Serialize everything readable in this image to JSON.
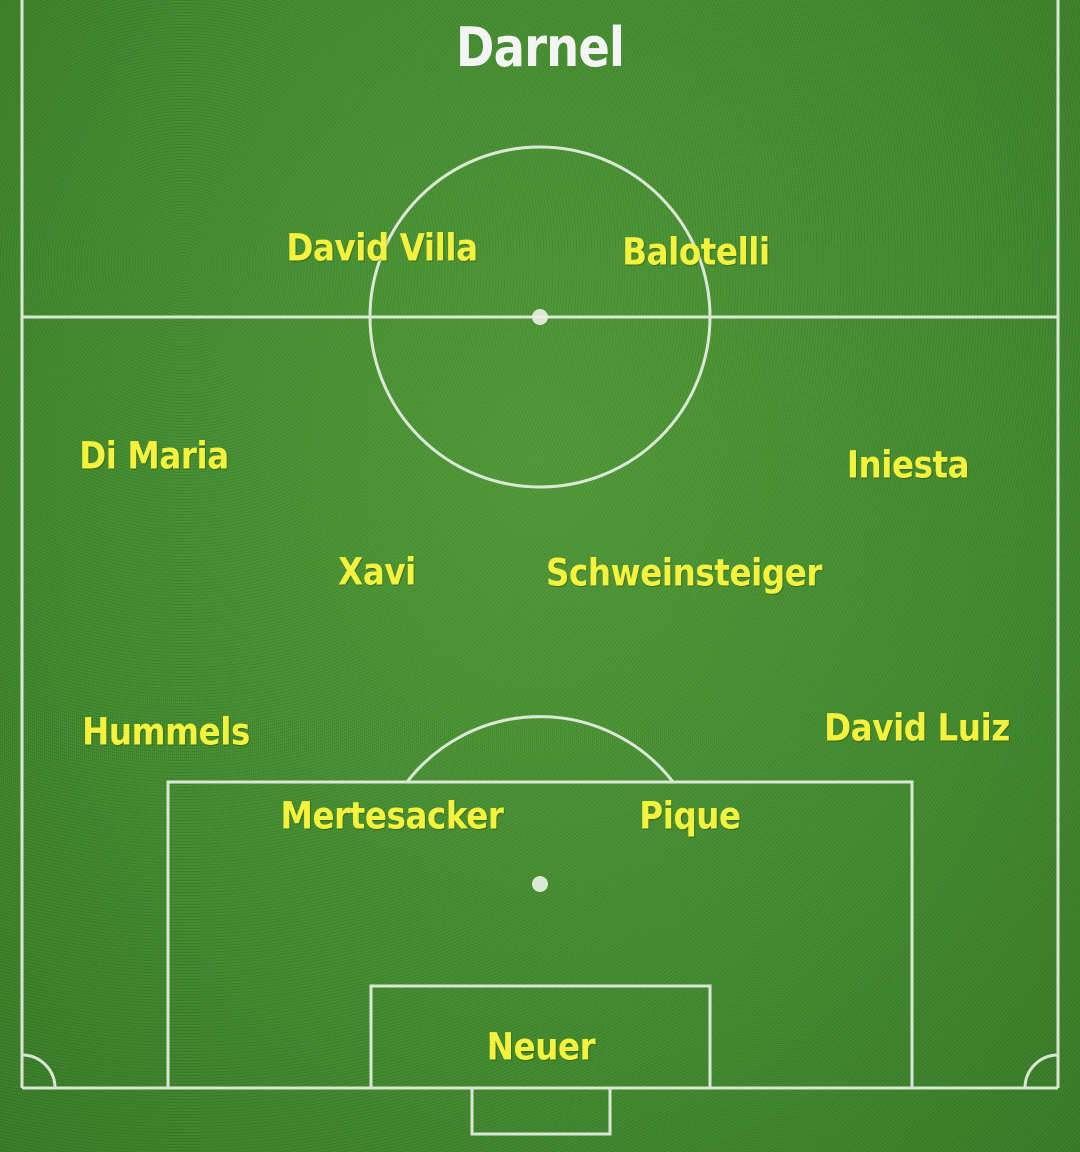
{
  "team_name": "Darnel",
  "colors": {
    "grass": "#3f8a2a",
    "lines": "#e8efe4",
    "player_text": "#f4f23c",
    "title_text": "#f4f4f4"
  },
  "players": {
    "forward_left": "David Villa",
    "forward_right": "Balotelli",
    "wing_left": "Di Maria",
    "wing_right": "Iniesta",
    "mid_left": "Xavi",
    "mid_right": "Schweinsteiger",
    "back_left": "Hummels",
    "back_right": "David Luiz",
    "center_back_left": "Mertesacker",
    "center_back_right": "Pique",
    "goalkeeper": "Neuer"
  }
}
